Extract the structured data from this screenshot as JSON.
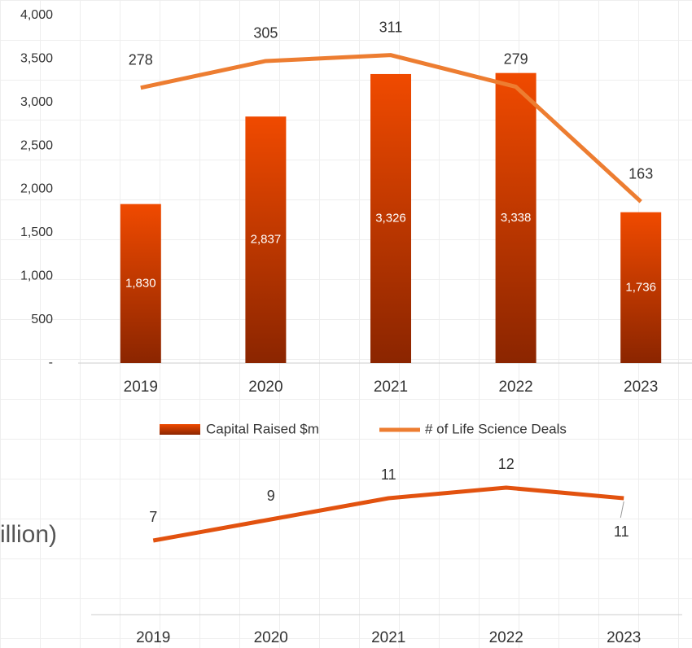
{
  "chart_data": [
    {
      "type": "bar_line",
      "categories": [
        "2019",
        "2020",
        "2021",
        "2022",
        "2023"
      ],
      "series": [
        {
          "name": "Capital Raised $m",
          "color": "#f04a00",
          "type": "bar",
          "values": [
            1830,
            2837,
            3326,
            3338,
            1736
          ],
          "value_labels": [
            "1,830",
            "2,837",
            "3,326",
            "3,338",
            "1,736"
          ]
        },
        {
          "name": "# of Life Science Deals",
          "color": "#ed7d31",
          "type": "line",
          "axis": "y2",
          "values": [
            278,
            305,
            311,
            279,
            163
          ]
        }
      ],
      "ylim": [
        0,
        4000
      ],
      "yticks": [
        {
          "value": 0,
          "label": "-"
        },
        500,
        {
          "value": 1000,
          "label": "1,000"
        },
        {
          "value": 1500,
          "label": "1,500"
        },
        {
          "value": 2000,
          "label": "2,000"
        },
        {
          "value": 2500,
          "label": "2,500"
        },
        {
          "value": 3000,
          "label": "3,000"
        },
        {
          "value": 3500,
          "label": "3,500"
        },
        {
          "value": 4000,
          "label": "4,000"
        }
      ],
      "y2lim": [
        0,
        351
      ],
      "legend": "bottom"
    },
    {
      "type": "line",
      "title": "illion)",
      "categories": [
        "2019",
        "2020",
        "2021",
        "2022",
        "2023"
      ],
      "series": [
        {
          "name": null,
          "color": "#e2520f",
          "values": [
            7,
            9,
            11,
            12,
            11
          ]
        }
      ],
      "ylim": [
        0,
        20
      ]
    }
  ]
}
